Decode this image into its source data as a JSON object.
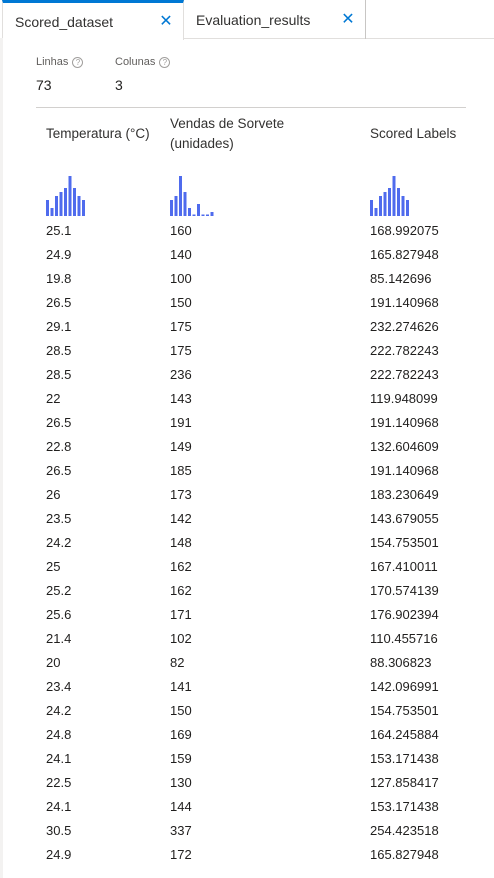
{
  "tabs": [
    {
      "label": "Scored_dataset",
      "close": "✕"
    },
    {
      "label": "Evaluation_results",
      "close": "✕"
    }
  ],
  "stats": {
    "rows_label": "Linhas",
    "rows_value": "73",
    "cols_label": "Colunas",
    "cols_value": "3",
    "help_glyph": "?"
  },
  "columns": [
    {
      "header_line1": "Temperatura (°C)",
      "header_line2": "",
      "histogram": [
        4,
        2,
        5,
        6,
        7,
        10,
        7,
        5,
        4
      ]
    },
    {
      "header_line1": "Vendas de Sorvete",
      "header_line2": "(unidades)",
      "histogram": [
        4,
        5,
        10,
        6,
        2,
        0,
        3,
        0,
        0,
        1
      ]
    },
    {
      "header_line1": "Scored Labels",
      "header_line2": "",
      "histogram": [
        4,
        2,
        5,
        6,
        7,
        10,
        7,
        5,
        4
      ]
    }
  ],
  "accent_color": "#4f6bed",
  "rows": [
    [
      "25.1",
      "160",
      "168.992075"
    ],
    [
      "24.9",
      "140",
      "165.827948"
    ],
    [
      "19.8",
      "100",
      "85.142696"
    ],
    [
      "26.5",
      "150",
      "191.140968"
    ],
    [
      "29.1",
      "175",
      "232.274626"
    ],
    [
      "28.5",
      "175",
      "222.782243"
    ],
    [
      "28.5",
      "236",
      "222.782243"
    ],
    [
      "22",
      "143",
      "119.948099"
    ],
    [
      "26.5",
      "191",
      "191.140968"
    ],
    [
      "22.8",
      "149",
      "132.604609"
    ],
    [
      "26.5",
      "185",
      "191.140968"
    ],
    [
      "26",
      "173",
      "183.230649"
    ],
    [
      "23.5",
      "142",
      "143.679055"
    ],
    [
      "24.2",
      "148",
      "154.753501"
    ],
    [
      "25",
      "162",
      "167.410011"
    ],
    [
      "25.2",
      "162",
      "170.574139"
    ],
    [
      "25.6",
      "171",
      "176.902394"
    ],
    [
      "21.4",
      "102",
      "110.455716"
    ],
    [
      "20",
      "82",
      "88.306823"
    ],
    [
      "23.4",
      "141",
      "142.096991"
    ],
    [
      "24.2",
      "150",
      "154.753501"
    ],
    [
      "24.8",
      "169",
      "164.245884"
    ],
    [
      "24.1",
      "159",
      "153.171438"
    ],
    [
      "22.5",
      "130",
      "127.858417"
    ],
    [
      "24.1",
      "144",
      "153.171438"
    ],
    [
      "30.5",
      "337",
      "254.423518"
    ],
    [
      "24.9",
      "172",
      "165.827948"
    ]
  ]
}
